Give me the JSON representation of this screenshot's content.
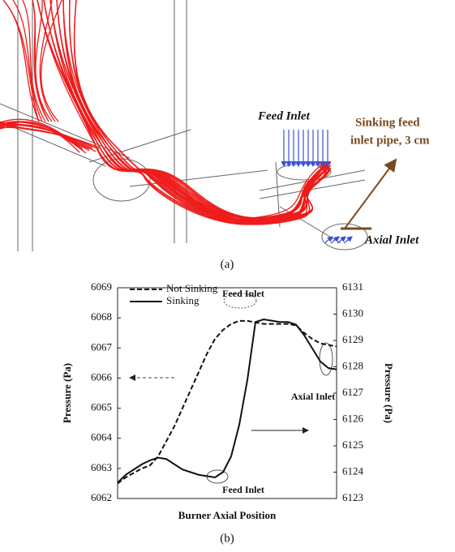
{
  "figure_a": {
    "feed_label": "Feed Inlet",
    "pipe_label": [
      "Sinking feed",
      "inlet pipe, 3 cm"
    ],
    "axial_label": "Axial Inlet",
    "caption": "(a)"
  },
  "chart_data": {
    "type": "line",
    "x_label": "Burner Axial Position",
    "y_label": "Pressure (Pa)",
    "y2_label": "Pressure (Pa)",
    "caption": "(b)",
    "categories": [
      null,
      null,
      null,
      null,
      null,
      null,
      null,
      null,
      null,
      null,
      null,
      null,
      null,
      null,
      null,
      null,
      null,
      null,
      null,
      null,
      null,
      null,
      null,
      null,
      null,
      null,
      null,
      null
    ],
    "series": [
      {
        "name": "Not Sinking",
        "color": "#111111",
        "dash": true,
        "axis": "y",
        "values": [
          6062.5,
          6062.7,
          6062.85,
          6063.0,
          6063.1,
          6063.4,
          6063.9,
          6064.4,
          6065.0,
          6065.6,
          6066.2,
          6066.8,
          6067.3,
          6067.6,
          6067.8,
          6067.9,
          6067.9,
          6067.85,
          6067.8,
          6067.8,
          6067.8,
          6067.8,
          6067.75,
          6067.5,
          6067.3,
          6067.15,
          6067.1,
          6067.05
        ]
      },
      {
        "name": "Sinking",
        "color": "#111111",
        "dash": false,
        "axis": "y2",
        "values": [
          6123.6,
          6123.9,
          6124.1,
          6124.3,
          6124.45,
          6124.55,
          6124.5,
          6124.3,
          6124.1,
          6124.0,
          6123.9,
          6123.85,
          6123.8,
          6124.0,
          6124.6,
          6125.8,
          6127.5,
          6129.7,
          6129.8,
          6129.75,
          6129.7,
          6129.7,
          6129.6,
          6129.2,
          6128.7,
          6128.2,
          6127.95,
          6127.9
        ]
      }
    ],
    "ylim": [
      6062,
      6069
    ],
    "yticks": [
      6062,
      6063,
      6064,
      6065,
      6066,
      6067,
      6068,
      6069
    ],
    "y2lim": [
      6123,
      6131
    ],
    "y2ticks": [
      6123,
      6124,
      6125,
      6126,
      6127,
      6128,
      6129,
      6130,
      6131
    ],
    "legend": "upper left",
    "annotations": [
      "Feed Inlet",
      "Feed Inlet",
      "Axial Inlet"
    ]
  }
}
